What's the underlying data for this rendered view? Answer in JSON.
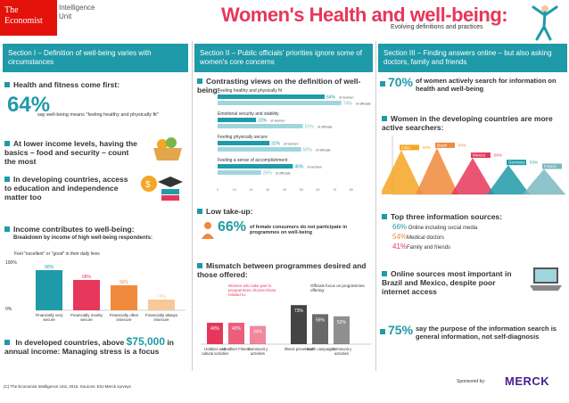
{
  "header": {
    "logo_line1": "The",
    "logo_line2": "Economist",
    "unit_line1": "Intelligence",
    "unit_line2": "Unit",
    "title": "Women's Health and well-being:",
    "subtitle": "Evolving definitions and practices"
  },
  "section1": {
    "heading": "Section I – Definition of well-being varies with circumstances",
    "b1": "Health and fitness come first:",
    "b1_pct": "64%",
    "b1_text": "say well-being means \"feeling healthy and physically fit\"",
    "b2": "At lower income levels, having the basics – food and security – count the most",
    "b3": "In developing countries, access to education and independence matter too",
    "b4": "Income contributes to well-being:",
    "b4_sub": "Breakdown by income of high well-being respondents:",
    "chart_title": "Feel \"excellent\" or \"good\" in their daily lives",
    "axis_top": "100%",
    "axis_bottom": "0%",
    "b5_pre": "In developed countries, above",
    "b5_amount": "$75,000",
    "b5_post": "in annual income: Managing stress is a focus"
  },
  "section2": {
    "heading": "Section II – Public officials' priorities ignore some of women's core concerns",
    "b1": "Contrasting views on the definition of well-being:",
    "low_take": "Low take-up:",
    "low_pct": "66%",
    "low_text": "of female consumers do not participate in programmes on well-being",
    "mismatch": "Mismatch between programmes desired and those offered:",
    "legend_women": "Women who take part in programmes choose those related to:",
    "legend_officials": "Officials focus on programmes offering:"
  },
  "section3": {
    "heading": "Section III – Finding answers online – but also asking doctors, family and friends",
    "b1_pct": "70%",
    "b1_text": "of women actively search for information on health and well-being",
    "b2": "Women in the developing countries are more active searchers:",
    "b3": "Top three information sources:",
    "src1_pct": "66%",
    "src1": "Online including social media",
    "src2_pct": "54%",
    "src2": "Medical doctors",
    "src3_pct": "41%",
    "src3": "Family and friends",
    "b4": "Online sources most important in Brazil and Mexico, despite poor internet access",
    "b5_pct": "75%",
    "b5_text": "say the purpose of the information search is general information, not self-diagnosis"
  },
  "footer": {
    "copyright": "(C) The Economist Intelligence Unit, 2015. Sources: EIU-Merck surveys",
    "sponsored": "Sponsored by:",
    "sponsor_name": "MERCK"
  },
  "chart_data": [
    {
      "type": "bar",
      "title": "Feel \"excellent\" or \"good\" in their daily lives",
      "categories": [
        "Financially very secure",
        "Financially mostly secure",
        "Financially often insecure",
        "Financially always insecure"
      ],
      "values": [
        90,
        68,
        56,
        24
      ],
      "value_labels": [
        "90%",
        "68%",
        "56%",
        "24%"
      ],
      "ylim": [
        0,
        100
      ]
    },
    {
      "type": "bar",
      "orientation": "horizontal",
      "categories": [
        "Feeling healthy and physically fit",
        "Emotional security and stability",
        "Feeling physically secure",
        "Feeling a sense of accomplishment"
      ],
      "series": [
        {
          "name": "of women",
          "values": [
            64,
            23,
            31,
            45
          ],
          "labels": [
            "64%",
            "23%",
            "31%",
            "45%"
          ]
        },
        {
          "name": "of officials",
          "values": [
            74,
            51,
            50,
            26
          ],
          "labels": [
            "74%",
            "51%",
            "50%",
            "26%"
          ]
        }
      ],
      "xlim": [
        0,
        80
      ],
      "ticks": [
        "0",
        "10",
        "20",
        "30",
        "40",
        "50",
        "60",
        "70",
        "80"
      ]
    },
    {
      "type": "bar",
      "categories": [
        "Hobbies and cultural activities",
        "Healthier Fitness",
        "Communit y activities",
        "Illness prevention",
        "Health campaigns",
        "Communit y activities"
      ],
      "values": [
        40,
        40,
        34,
        73,
        56,
        52
      ],
      "labels": [
        "40%",
        "40%",
        "34%",
        "73%",
        "56%",
        "52%"
      ],
      "groups": [
        "Women",
        "Women",
        "Women",
        "Officials",
        "Officials",
        "Officials"
      ]
    },
    {
      "type": "area",
      "categories": [
        "India",
        "Brazil",
        "Mexico",
        "Germany",
        "France"
      ],
      "values": [
        80,
        84,
        66,
        53,
        46
      ],
      "labels": [
        "80%",
        "84%",
        "66%",
        "53%",
        "46%"
      ]
    }
  ]
}
